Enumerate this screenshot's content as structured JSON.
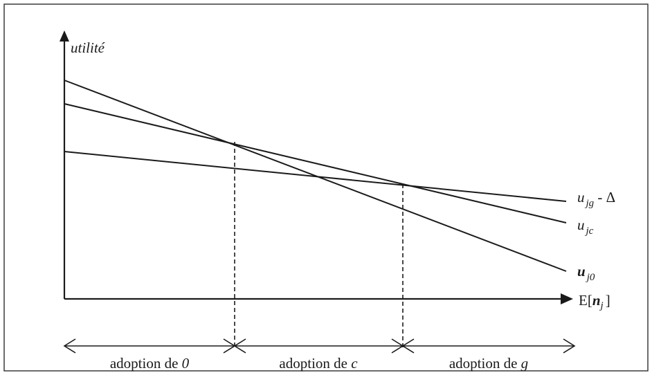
{
  "axes": {
    "y_label": "utilité",
    "x_label_prefix": "E[",
    "x_label_var": "n",
    "x_label_sub": "j",
    "x_label_suffix": "]"
  },
  "curves": [
    {
      "id": "ujg",
      "base": "u",
      "sub": "jg",
      "suffix": " - Δ"
    },
    {
      "id": "ujc",
      "base": "u",
      "sub": "jc",
      "suffix": ""
    },
    {
      "id": "uj0",
      "base": "u",
      "sub": "j0",
      "suffix": ""
    }
  ],
  "zones": [
    {
      "prefix": "adoption de ",
      "var": "0"
    },
    {
      "prefix": "adoption de ",
      "var": "c"
    },
    {
      "prefix": "adoption de ",
      "var": "g"
    }
  ]
}
